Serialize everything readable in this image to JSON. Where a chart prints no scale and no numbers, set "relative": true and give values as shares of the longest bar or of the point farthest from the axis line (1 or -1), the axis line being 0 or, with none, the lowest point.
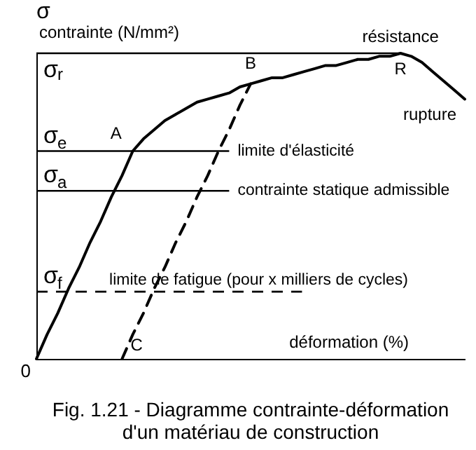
{
  "chart_data": {
    "type": "line",
    "relative": true,
    "title": "Fig. 1.21 - Diagramme contrainte-déformation\nd'un matériau de construction",
    "xlabel": "déformation (%)",
    "ylabel": "contrainte  (N/mm²)",
    "categories": [
      null,
      null,
      null,
      null,
      null,
      null,
      null,
      null,
      null,
      null,
      null,
      null,
      null,
      null,
      null,
      null,
      null,
      null,
      null,
      null,
      null,
      null,
      null,
      null,
      null,
      null,
      null,
      null,
      null,
      null,
      null,
      null,
      null,
      null,
      null,
      null,
      null,
      null,
      null,
      null,
      null
    ],
    "series": [
      {
        "color": "#000000",
        "line_style": "solid",
        "values": [
          0,
          0.08,
          0.15,
          0.23,
          0.3,
          0.38,
          0.45,
          0.53,
          0.6,
          0.68,
          0.72,
          0.75,
          0.78,
          0.8,
          0.82,
          0.84,
          0.85,
          0.86,
          0.87,
          0.89,
          0.9,
          0.91,
          0.92,
          0.92,
          0.93,
          0.94,
          0.95,
          0.96,
          0.96,
          0.97,
          0.98,
          0.98,
          0.99,
          0.99,
          1.0,
          0.99,
          0.97,
          0.94,
          0.91,
          0.88,
          0.85
        ]
      },
      {
        "color": "#000000",
        "line_style": "dashed",
        "values": [
          null,
          null,
          null,
          null,
          null,
          null,
          null,
          null,
          0,
          0.08,
          0.15,
          0.23,
          0.3,
          0.38,
          0.45,
          0.53,
          0.6,
          0.68,
          0.75,
          0.83,
          0.9,
          null,
          null,
          null,
          null,
          null,
          null,
          null,
          null,
          null,
          null,
          null,
          null,
          null,
          null,
          null,
          null,
          null,
          null,
          null,
          null
        ]
      }
    ],
    "ref_lines": [
      {
        "axis": "y",
        "value": 1,
        "label": "σ$_{r}$"
      },
      {
        "axis": "y",
        "value": 0.68,
        "label": "σ$_{e}$"
      },
      {
        "axis": "y",
        "value": 0.55,
        "label": "σ$_{a}$"
      },
      {
        "axis": "y",
        "value": 0.22,
        "label": "σ$_{f}$",
        "line_style": "dashed"
      }
    ],
    "annotations": [
      "σ",
      "0",
      "A",
      "B",
      "R",
      "résistance",
      "rupture",
      "C",
      "limite d'élasticité",
      "contrainte statique admissible",
      "limite de fatigue (pour x milliers de cycles)"
    ]
  }
}
